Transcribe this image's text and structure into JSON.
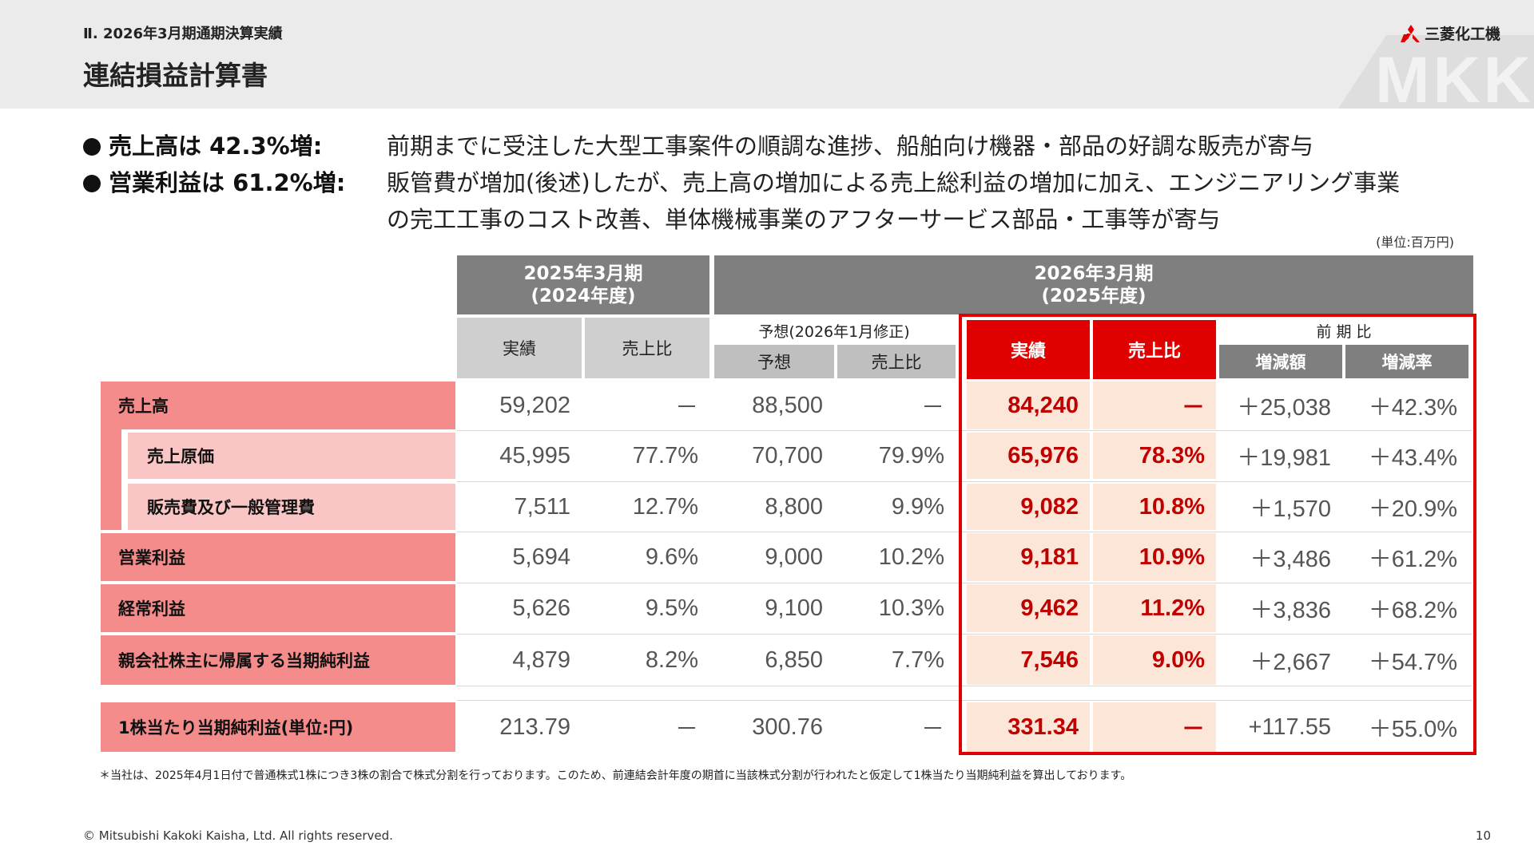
{
  "header": {
    "section": "Ⅱ. 2026年3月期通期決算実績",
    "title": "連結損益計算書",
    "logo_text": "三菱化工機",
    "watermark": "MKK"
  },
  "summary": [
    {
      "label": "売上高は 42.3%増:",
      "text": "前期までに受注した大型工事案件の順調な進捗、船舶向け機器・部品の好調な販売が寄与",
      "text2": ""
    },
    {
      "label": "営業利益は 61.2%増:",
      "text": "販管費が増加(後述)したが、売上高の増加による売上総利益の増加に加え、エンジニアリング事業",
      "text2": "の完工工事のコスト改善、単体機械事業のアフターサービス部品・工事等が寄与"
    }
  ],
  "unit": "(単位:百万円)",
  "table": {
    "fy2025_header": [
      "2025年3月期",
      "(2024年度)"
    ],
    "fy2026_header": [
      "2026年3月期",
      "(2025年度)"
    ],
    "forecast_group": "予想(2026年1月修正)",
    "yoy_group": "前 期 比",
    "col_actual": "実績",
    "col_ratio": "売上比",
    "col_forecast": "予想",
    "col_change": "増減額",
    "col_rate": "増減率",
    "rows": [
      {
        "label": "売上高",
        "prev": "59,202",
        "prev_ratio": "－",
        "fc": "88,500",
        "fc_ratio": "－",
        "act": "84,240",
        "act_ratio": "－",
        "chg": "＋25,038",
        "rate": "＋42.3%"
      },
      {
        "label": "売上原価",
        "prev": "45,995",
        "prev_ratio": "77.7%",
        "fc": "70,700",
        "fc_ratio": "79.9%",
        "act": "65,976",
        "act_ratio": "78.3%",
        "chg": "＋19,981",
        "rate": "＋43.4%"
      },
      {
        "label": "販売費及び一般管理費",
        "prev": "7,511",
        "prev_ratio": "12.7%",
        "fc": "8,800",
        "fc_ratio": "9.9%",
        "act": "9,082",
        "act_ratio": "10.8%",
        "chg": "＋1,570",
        "rate": "＋20.9%"
      },
      {
        "label": "営業利益",
        "prev": "5,694",
        "prev_ratio": "9.6%",
        "fc": "9,000",
        "fc_ratio": "10.2%",
        "act": "9,181",
        "act_ratio": "10.9%",
        "chg": "＋3,486",
        "rate": "＋61.2%"
      },
      {
        "label": "経常利益",
        "prev": "5,626",
        "prev_ratio": "9.5%",
        "fc": "9,100",
        "fc_ratio": "10.3%",
        "act": "9,462",
        "act_ratio": "11.2%",
        "chg": "＋3,836",
        "rate": "＋68.2%"
      },
      {
        "label": "親会社株主に帰属する当期純利益",
        "prev": "4,879",
        "prev_ratio": "8.2%",
        "fc": "6,850",
        "fc_ratio": "7.7%",
        "act": "7,546",
        "act_ratio": "9.0%",
        "chg": "＋2,667",
        "rate": "＋54.7%"
      },
      {
        "label": "1株当たり当期純利益(単位:円)",
        "prev": "213.79",
        "prev_ratio": "－",
        "fc": "300.76",
        "fc_ratio": "－",
        "act": "331.34",
        "act_ratio": "－",
        "chg": "+117.55",
        "rate": "＋55.0%"
      }
    ]
  },
  "footnote": "＊当社は、2025年4月1日付で普通株式1株につき3株の割合で株式分割を行っております。このため、前連結会計年度の期首に当該株式分割が行われたと仮定して1株当たり当期純利益を算出しております。",
  "footer": {
    "copyright": "© Mitsubishi Kakoki Kaisha, Ltd. All rights reserved.",
    "page": "10"
  },
  "colors": {
    "accent_red": "#e00000",
    "label_pink_dark": "#f48c8c",
    "label_pink_light": "#f9c5c5",
    "highlight_cell": "#fbe6d8",
    "header_grey": "#7f7f7f"
  }
}
